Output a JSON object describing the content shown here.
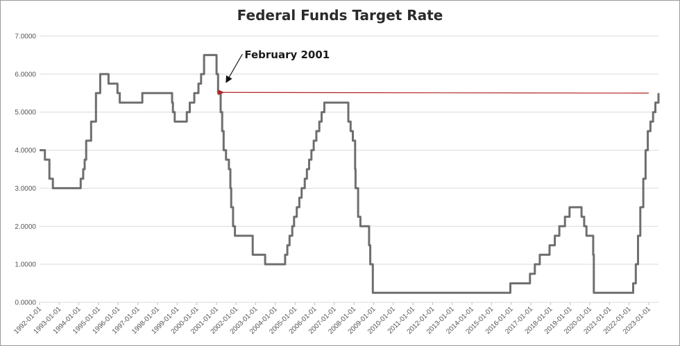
{
  "chart_data": {
    "type": "line",
    "title": "Federal Funds Target Rate",
    "xlabel": "",
    "ylabel": "",
    "ylim": [
      0,
      7
    ],
    "yticks": [
      "0.0000",
      "1.0000",
      "2.0000",
      "3.0000",
      "4.0000",
      "5.0000",
      "6.0000",
      "7.0000"
    ],
    "xticks": [
      "1992-01-01",
      "1993-01-01",
      "1994-01-01",
      "1995-01-01",
      "1996-01-01",
      "1997-01-01",
      "1998-01-01",
      "1999-01-01",
      "2000-01-01",
      "2001-01-01",
      "2002-01-01",
      "2003-01-01",
      "2004-01-01",
      "2005-01-01",
      "2006-01-01",
      "2007-01-01",
      "2008-01-01",
      "2009-01-01",
      "2010-01-01",
      "2011-01-01",
      "2012-01-01",
      "2013-01-01",
      "2014-01-01",
      "2015-01-01",
      "2016-01-01",
      "2017-01-01",
      "2018-01-01",
      "2019-01-01",
      "2020-01-01",
      "2021-01-01",
      "2022-01-01",
      "2023-01-01"
    ],
    "xlim": [
      "1992-01-01",
      "2023-07-01"
    ],
    "grid": true,
    "line_color": "#6e6e6e",
    "series": [
      {
        "values": [
          [
            "1992-01-01",
            4.0
          ],
          [
            "1992-04-09",
            3.75
          ],
          [
            "1992-07-02",
            3.25
          ],
          [
            "1992-09-04",
            3.0
          ],
          [
            "1994-02-04",
            3.25
          ],
          [
            "1994-03-22",
            3.5
          ],
          [
            "1994-04-18",
            3.75
          ],
          [
            "1994-05-17",
            4.25
          ],
          [
            "1994-08-16",
            4.75
          ],
          [
            "1994-11-15",
            5.5
          ],
          [
            "1995-02-01",
            6.0
          ],
          [
            "1995-07-06",
            5.75
          ],
          [
            "1995-12-19",
            5.5
          ],
          [
            "1996-01-31",
            5.25
          ],
          [
            "1997-03-25",
            5.5
          ],
          [
            "1998-09-29",
            5.25
          ],
          [
            "1998-10-15",
            5.0
          ],
          [
            "1998-11-17",
            4.75
          ],
          [
            "1999-06-30",
            5.0
          ],
          [
            "1999-08-24",
            5.25
          ],
          [
            "1999-11-16",
            5.5
          ],
          [
            "2000-02-02",
            5.75
          ],
          [
            "2000-03-21",
            6.0
          ],
          [
            "2000-05-16",
            6.5
          ],
          [
            "2001-01-03",
            6.0
          ],
          [
            "2001-01-31",
            5.5
          ],
          [
            "2001-03-20",
            5.0
          ],
          [
            "2001-04-18",
            4.5
          ],
          [
            "2001-05-15",
            4.0
          ],
          [
            "2001-06-27",
            3.75
          ],
          [
            "2001-08-21",
            3.5
          ],
          [
            "2001-09-17",
            3.0
          ],
          [
            "2001-10-02",
            2.5
          ],
          [
            "2001-11-06",
            2.0
          ],
          [
            "2001-12-11",
            1.75
          ],
          [
            "2002-11-06",
            1.25
          ],
          [
            "2003-06-25",
            1.0
          ],
          [
            "2004-06-30",
            1.25
          ],
          [
            "2004-08-10",
            1.5
          ],
          [
            "2004-09-21",
            1.75
          ],
          [
            "2004-11-10",
            2.0
          ],
          [
            "2004-12-14",
            2.25
          ],
          [
            "2005-02-02",
            2.5
          ],
          [
            "2005-03-22",
            2.75
          ],
          [
            "2005-05-03",
            3.0
          ],
          [
            "2005-06-30",
            3.25
          ],
          [
            "2005-08-09",
            3.5
          ],
          [
            "2005-09-20",
            3.75
          ],
          [
            "2005-11-01",
            4.0
          ],
          [
            "2005-12-13",
            4.25
          ],
          [
            "2006-01-31",
            4.5
          ],
          [
            "2006-03-28",
            4.75
          ],
          [
            "2006-05-10",
            5.0
          ],
          [
            "2006-06-29",
            5.25
          ],
          [
            "2007-09-18",
            4.75
          ],
          [
            "2007-10-31",
            4.5
          ],
          [
            "2007-12-11",
            4.25
          ],
          [
            "2008-01-22",
            3.5
          ],
          [
            "2008-01-30",
            3.0
          ],
          [
            "2008-03-18",
            2.25
          ],
          [
            "2008-04-30",
            2.0
          ],
          [
            "2008-10-08",
            1.5
          ],
          [
            "2008-10-29",
            1.0
          ],
          [
            "2008-12-16",
            0.25
          ],
          [
            "2015-12-17",
            0.5
          ],
          [
            "2016-12-15",
            0.75
          ],
          [
            "2017-03-16",
            1.0
          ],
          [
            "2017-06-15",
            1.25
          ],
          [
            "2017-12-14",
            1.5
          ],
          [
            "2018-03-22",
            1.75
          ],
          [
            "2018-06-14",
            2.0
          ],
          [
            "2018-09-27",
            2.25
          ],
          [
            "2018-12-20",
            2.5
          ],
          [
            "2019-08-01",
            2.25
          ],
          [
            "2019-09-19",
            2.0
          ],
          [
            "2019-10-31",
            1.75
          ],
          [
            "2020-03-04",
            1.25
          ],
          [
            "2020-03-16",
            0.25
          ],
          [
            "2022-03-17",
            0.5
          ],
          [
            "2022-05-05",
            1.0
          ],
          [
            "2022-06-16",
            1.75
          ],
          [
            "2022-07-28",
            2.5
          ],
          [
            "2022-09-22",
            3.25
          ],
          [
            "2022-11-03",
            4.0
          ],
          [
            "2022-12-15",
            4.5
          ],
          [
            "2023-02-02",
            4.75
          ],
          [
            "2023-03-23",
            5.0
          ],
          [
            "2023-05-04",
            5.25
          ],
          [
            "2023-07-01",
            5.5
          ]
        ]
      }
    ],
    "annotation": {
      "text": "February 2001",
      "arrow_color": "#111111",
      "reference_line_color": "#b22222",
      "reference_from": [
        "2023-07-01",
        5.5
      ],
      "reference_to": [
        "2001-02-01",
        5.5
      ]
    }
  }
}
